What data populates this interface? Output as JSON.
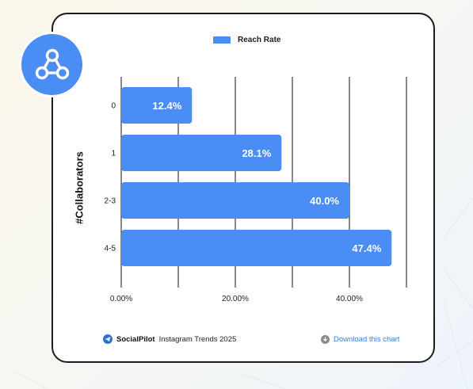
{
  "legend": {
    "label": "Reach Rate",
    "color": "#4a8ef5"
  },
  "badge_icon": "collaboration-network-icon",
  "footer": {
    "brand": "SocialPilot",
    "source": "Instagram Trends 2025",
    "download_label": "Download this chart",
    "download_icon": "download-icon"
  },
  "chart_data": {
    "type": "bar",
    "orientation": "horizontal",
    "title": "",
    "xlabel": "",
    "ylabel": "#Collaborators",
    "categories": [
      "0",
      "1",
      "2-3",
      "4-5"
    ],
    "series": [
      {
        "name": "Reach Rate",
        "values": [
          12.4,
          28.1,
          40.0,
          47.4
        ],
        "labels": [
          "12.4%",
          "28.1%",
          "40.0%",
          "47.4%"
        ]
      }
    ],
    "xlim": [
      0,
      50
    ],
    "xticks": [
      0,
      20,
      40
    ],
    "xtick_labels": [
      "0.00%",
      "20.00%",
      "40.00%"
    ],
    "gridlines": [
      0,
      10,
      20,
      30,
      40,
      50
    ],
    "grid": true,
    "legend_position": "top-center",
    "bar_color": "#4a8ef5"
  }
}
